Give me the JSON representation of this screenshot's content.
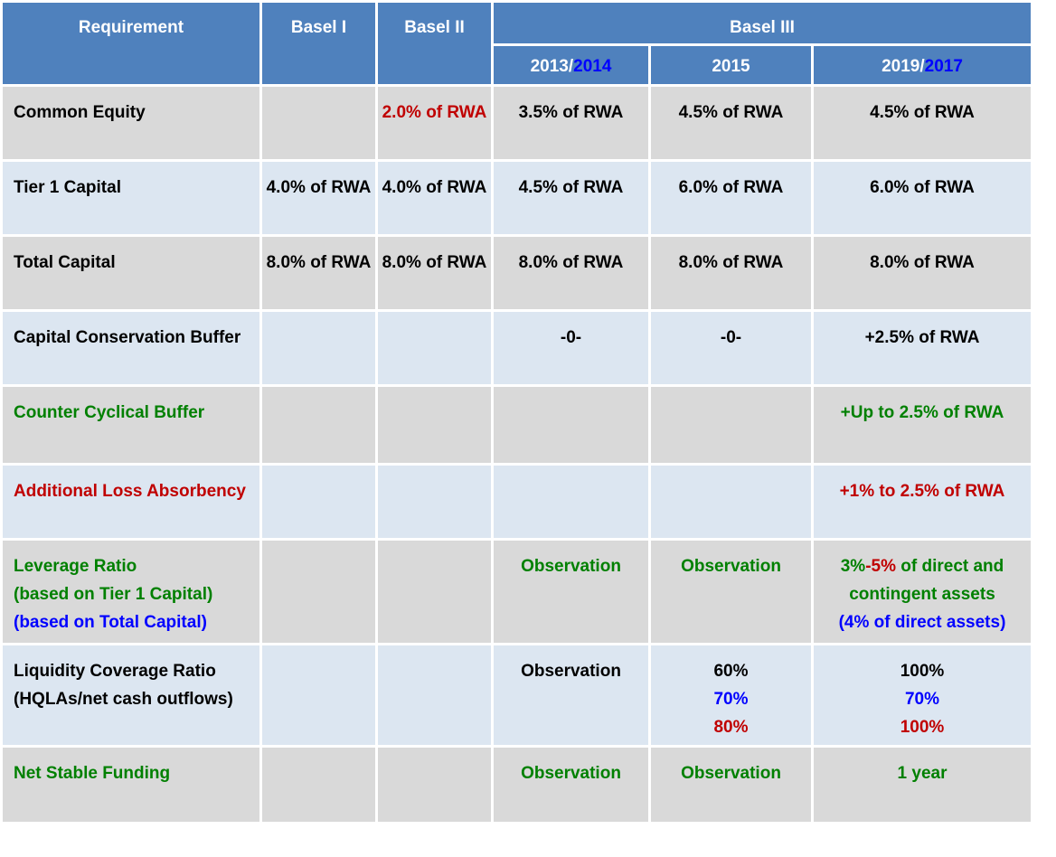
{
  "table": {
    "header": {
      "top": [
        [
          {
            "text": "Requirement"
          }
        ],
        [
          {
            "text": "Basel I"
          }
        ],
        [
          {
            "text": "Basel II"
          }
        ],
        [
          {
            "text": "Basel III"
          }
        ]
      ],
      "sub": [
        [
          {
            "text": "2013/"
          },
          {
            "text": "2014",
            "color": "#0000ff"
          }
        ],
        [
          {
            "text": "2015"
          }
        ],
        [
          {
            "text": "2019/"
          },
          {
            "text": "2017",
            "color": "#0000ff"
          }
        ]
      ]
    },
    "rows": [
      [
        [
          [
            {
              "text": "Common Equity"
            }
          ]
        ],
        null,
        [
          [
            {
              "text": "2.0% of RWA",
              "color": "#c00000"
            }
          ]
        ],
        [
          [
            {
              "text": "3.5% of RWA"
            }
          ]
        ],
        [
          [
            {
              "text": "4.5% of RWA"
            }
          ]
        ],
        [
          [
            {
              "text": "4.5% of RWA"
            }
          ]
        ]
      ],
      [
        [
          [
            {
              "text": "Tier 1 Capital"
            }
          ]
        ],
        [
          [
            {
              "text": "4.0% of RWA"
            }
          ]
        ],
        [
          [
            {
              "text": "4.0% of RWA"
            }
          ]
        ],
        [
          [
            {
              "text": "4.5% of RWA"
            }
          ]
        ],
        [
          [
            {
              "text": "6.0% of RWA"
            }
          ]
        ],
        [
          [
            {
              "text": "6.0% of RWA"
            }
          ]
        ]
      ],
      [
        [
          [
            {
              "text": "Total Capital"
            }
          ]
        ],
        [
          [
            {
              "text": "8.0% of RWA"
            }
          ]
        ],
        [
          [
            {
              "text": "8.0% of RWA"
            }
          ]
        ],
        [
          [
            {
              "text": "8.0% of RWA"
            }
          ]
        ],
        [
          [
            {
              "text": "8.0% of RWA"
            }
          ]
        ],
        [
          [
            {
              "text": "8.0% of RWA"
            }
          ]
        ]
      ],
      [
        [
          [
            {
              "text": "Capital Conservation Buffer"
            }
          ]
        ],
        null,
        null,
        [
          [
            {
              "text": "-0-"
            }
          ]
        ],
        [
          [
            {
              "text": "-0-"
            }
          ]
        ],
        [
          [
            {
              "text": "+2.5% of RWA"
            }
          ]
        ]
      ],
      [
        [
          [
            {
              "text": "Counter Cyclical Buffer",
              "color": "#008000"
            }
          ]
        ],
        null,
        null,
        null,
        null,
        [
          [
            {
              "text": "+Up to 2.5% of RWA",
              "color": "#008000"
            }
          ]
        ]
      ],
      [
        [
          [
            {
              "text": "Additional Loss Absorbency",
              "color": "#c00000"
            }
          ]
        ],
        null,
        null,
        null,
        null,
        [
          [
            {
              "text": "+1% to 2.5% of RWA",
              "color": "#c00000"
            }
          ]
        ]
      ],
      [
        [
          [
            {
              "text": "Leverage Ratio",
              "color": "#008000"
            }
          ],
          [
            {
              "text": "(based on Tier 1 Capital)",
              "color": "#008000"
            }
          ],
          [
            {
              "text": "(based on Total Capital)",
              "color": "#0000ff"
            }
          ]
        ],
        null,
        null,
        [
          [
            {
              "text": "Observation",
              "color": "#008000"
            }
          ]
        ],
        [
          [
            {
              "text": "Observation",
              "color": "#008000"
            }
          ]
        ],
        [
          [
            {
              "text": "3%",
              "color": "#008000"
            },
            {
              "text": "-5%",
              "color": "#c00000"
            },
            {
              "text": " of direct and",
              "color": "#008000"
            }
          ],
          [
            {
              "text": "contingent assets",
              "color": "#008000"
            }
          ],
          [
            {
              "text": "(4% of direct assets)",
              "color": "#0000ff"
            }
          ]
        ]
      ],
      [
        [
          [
            {
              "text": "Liquidity Coverage Ratio"
            }
          ],
          [
            {
              "text": "(HQLAs/net cash outflows)"
            }
          ]
        ],
        null,
        null,
        [
          [
            {
              "text": "Observation"
            }
          ]
        ],
        [
          [
            {
              "text": "60%"
            }
          ],
          [
            {
              "text": "70%",
              "color": "#0000ff"
            }
          ],
          [
            {
              "text": "80%",
              "color": "#c00000"
            }
          ]
        ],
        [
          [
            {
              "text": "100%"
            }
          ],
          [
            {
              "text": "70%",
              "color": "#0000ff"
            }
          ],
          [
            {
              "text": "100%",
              "color": "#c00000"
            }
          ]
        ]
      ],
      [
        [
          [
            {
              "text": "Net Stable Funding",
              "color": "#008000"
            }
          ]
        ],
        null,
        null,
        [
          [
            {
              "text": "Observation",
              "color": "#008000"
            }
          ]
        ],
        [
          [
            {
              "text": "Observation",
              "color": "#008000"
            }
          ]
        ],
        [
          [
            {
              "text": "1 year",
              "color": "#008000"
            }
          ]
        ]
      ]
    ]
  }
}
